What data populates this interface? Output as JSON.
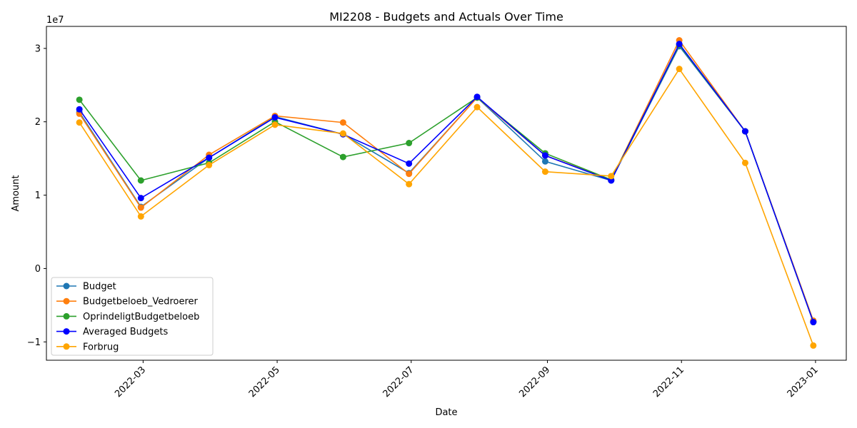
{
  "chart_data": {
    "type": "line",
    "title": "MI2208 - Budgets and Actuals Over Time",
    "xlabel": "Date",
    "ylabel": "Amount",
    "y_offset_label": "1e7",
    "x": [
      "2022-01-31",
      "2022-02-28",
      "2022-03-31",
      "2022-04-30",
      "2022-05-31",
      "2022-06-30",
      "2022-07-31",
      "2022-08-31",
      "2022-09-30",
      "2022-10-31",
      "2022-11-30",
      "2022-12-31"
    ],
    "xlim": [
      "2022-01-16",
      "2023-01-15"
    ],
    "x_ticks": [
      {
        "date": "2022-03-01",
        "label": "2022-03"
      },
      {
        "date": "2022-05-01",
        "label": "2022-05"
      },
      {
        "date": "2022-07-01",
        "label": "2022-07"
      },
      {
        "date": "2022-09-01",
        "label": "2022-09"
      },
      {
        "date": "2022-11-01",
        "label": "2022-11"
      },
      {
        "date": "2023-01-01",
        "label": "2023-01"
      }
    ],
    "ylim": [
      -12500000,
      33000000
    ],
    "y_ticks": [
      {
        "value": -10000000,
        "label": "−1"
      },
      {
        "value": 0,
        "label": "0"
      },
      {
        "value": 10000000,
        "label": "1"
      },
      {
        "value": 20000000,
        "label": "2"
      },
      {
        "value": 30000000,
        "label": "3"
      }
    ],
    "grid": false,
    "legend_position": "lower-left",
    "series": [
      {
        "name": "Budget",
        "color": "#1f77b4",
        "values": [
          21300000,
          8400000,
          15100000,
          20700000,
          18300000,
          13000000,
          23300000,
          14600000,
          12000000,
          30300000,
          18700000,
          -7200000
        ]
      },
      {
        "name": "Budgetbeloeb_Vedroerer",
        "color": "#ff7f0e",
        "values": [
          21100000,
          8300000,
          15500000,
          20800000,
          19900000,
          12900000,
          23300000,
          15400000,
          12100000,
          31100000,
          18700000,
          -7100000
        ]
      },
      {
        "name": "OprindeligtBudgetbeloeb",
        "color": "#2ca02c",
        "values": [
          23000000,
          12000000,
          14400000,
          20000000,
          15200000,
          17100000,
          23300000,
          15700000,
          12100000,
          30500000,
          18700000,
          -7300000
        ]
      },
      {
        "name": "Averaged Budgets",
        "color": "#0000ff",
        "values": [
          21700000,
          9600000,
          15100000,
          20600000,
          18300000,
          14300000,
          23400000,
          15400000,
          12000000,
          30600000,
          18700000,
          -7300000
        ]
      },
      {
        "name": "Forbrug",
        "color": "#ffa500",
        "values": [
          19900000,
          7100000,
          14100000,
          19600000,
          18400000,
          11500000,
          22000000,
          13200000,
          12600000,
          27200000,
          14400000,
          -10500000
        ]
      }
    ]
  }
}
